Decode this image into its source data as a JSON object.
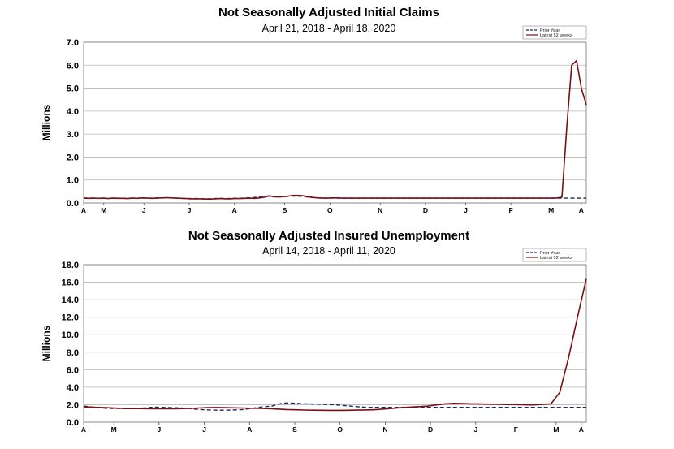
{
  "chart_data": [
    {
      "type": "line",
      "title": "Not Seasonally Adjusted Initial Claims",
      "subtitle": "April 21, 2018  -  April 18, 2020",
      "ylabel": "Millions",
      "ylim": [
        0,
        7
      ],
      "yticks": [
        "0.0",
        "1.0",
        "2.0",
        "3.0",
        "4.0",
        "5.0",
        "6.0",
        "7.0"
      ],
      "xticks": [
        "A",
        "M",
        "J",
        "J",
        "A",
        "S",
        "O",
        "N",
        "D",
        "J",
        "F",
        "M",
        "A"
      ],
      "grid": true,
      "legend_position": "top-right",
      "series": [
        {
          "name": "Prior Year",
          "style": "dashed",
          "color": "#1a2a5a",
          "values": [
            0.22,
            0.21,
            0.21,
            0.2,
            0.21,
            0.2,
            0.21,
            0.21,
            0.2,
            0.2,
            0.21,
            0.2,
            0.22,
            0.21,
            0.21,
            0.22,
            0.22,
            0.23,
            0.22,
            0.21,
            0.2,
            0.19,
            0.19,
            0.19,
            0.19,
            0.18,
            0.18,
            0.19,
            0.2,
            0.19,
            0.19,
            0.2,
            0.2,
            0.21,
            0.22,
            0.23,
            0.25,
            0.27,
            0.3,
            0.28,
            0.27,
            0.27,
            0.28,
            0.3,
            0.3,
            0.29,
            0.27,
            0.24,
            0.23,
            0.22,
            0.21,
            0.21,
            0.22,
            0.21,
            0.21,
            0.2,
            0.21,
            0.2,
            0.21,
            0.21,
            0.21,
            0.21,
            0.21,
            0.21,
            0.21,
            0.21,
            0.21,
            0.21,
            0.21,
            0.21,
            0.21,
            0.21,
            0.21,
            0.21,
            0.21,
            0.21,
            0.21,
            0.21,
            0.21,
            0.21,
            0.21,
            0.21,
            0.21,
            0.21,
            0.21,
            0.21,
            0.21,
            0.21,
            0.21,
            0.21,
            0.21,
            0.21,
            0.21,
            0.21,
            0.21,
            0.21,
            0.21,
            0.21,
            0.21,
            0.21,
            0.21,
            0.21,
            0.21,
            0.21,
            0.21
          ]
        },
        {
          "name": "Latest 52 weeks",
          "style": "solid",
          "color": "#7a0f14",
          "values": [
            0.21,
            0.2,
            0.21,
            0.2,
            0.21,
            0.19,
            0.21,
            0.2,
            0.2,
            0.19,
            0.21,
            0.2,
            0.22,
            0.21,
            0.2,
            0.21,
            0.22,
            0.23,
            0.22,
            0.21,
            0.2,
            0.19,
            0.18,
            0.18,
            0.18,
            0.17,
            0.17,
            0.18,
            0.19,
            0.18,
            0.18,
            0.19,
            0.19,
            0.2,
            0.21,
            0.2,
            0.22,
            0.25,
            0.31,
            0.27,
            0.26,
            0.28,
            0.3,
            0.33,
            0.33,
            0.31,
            0.27,
            0.24,
            0.22,
            0.21,
            0.21,
            0.22,
            0.22,
            0.21,
            0.21,
            0.21,
            0.21,
            0.21,
            0.21,
            0.21,
            0.21,
            0.21,
            0.21,
            0.21,
            0.21,
            0.21,
            0.21,
            0.21,
            0.21,
            0.21,
            0.21,
            0.21,
            0.21,
            0.21,
            0.21,
            0.21,
            0.21,
            0.21,
            0.21,
            0.21,
            0.21,
            0.21,
            0.21,
            0.21,
            0.21,
            0.21,
            0.21,
            0.21,
            0.21,
            0.21,
            0.21,
            0.21,
            0.21,
            0.21,
            0.21,
            0.21,
            0.21,
            0.22,
            0.25,
            3.31,
            6.0,
            6.2,
            4.99,
            4.27
          ]
        }
      ]
    },
    {
      "type": "line",
      "title": "Not Seasonally Adjusted Insured Unemployment",
      "subtitle": "April 14, 2018 - April 11, 2020",
      "ylabel": "Millions",
      "ylim": [
        0,
        18
      ],
      "yticks": [
        "0.0",
        "2.0",
        "4.0",
        "6.0",
        "8.0",
        "10.0",
        "12.0",
        "14.0",
        "16.0",
        "18.0"
      ],
      "xticks": [
        "A",
        "M",
        "J",
        "J",
        "A",
        "S",
        "O",
        "N",
        "D",
        "J",
        "F",
        "M",
        "A"
      ],
      "grid": true,
      "legend_position": "top-right",
      "series": [
        {
          "name": "Prior Year",
          "style": "dashed",
          "color": "#1a2a5a",
          "values": [
            1.85,
            1.78,
            1.72,
            1.68,
            1.62,
            1.58,
            1.58,
            1.57,
            1.56,
            1.55,
            1.55,
            1.56,
            1.6,
            1.65,
            1.7,
            1.72,
            1.7,
            1.68,
            1.66,
            1.65,
            1.63,
            1.6,
            1.56,
            1.5,
            1.46,
            1.42,
            1.4,
            1.38,
            1.37,
            1.37,
            1.38,
            1.4,
            1.42,
            1.45,
            1.52,
            1.6,
            1.68,
            1.75,
            1.8,
            1.85,
            2.0,
            2.15,
            2.2,
            2.18,
            2.15,
            2.12,
            2.1,
            2.08,
            2.06,
            2.05,
            2.02,
            2.0,
            2.0,
            1.95,
            1.9,
            1.85,
            1.8,
            1.75,
            1.72,
            1.7,
            1.7,
            1.7,
            1.7,
            1.7,
            1.7,
            1.7,
            1.7,
            1.7,
            1.7,
            1.7,
            1.7,
            1.7,
            1.7,
            1.7,
            1.7,
            1.7,
            1.7,
            1.7,
            1.7,
            1.7,
            1.7,
            1.7,
            1.7,
            1.7,
            1.7,
            1.7,
            1.7,
            1.7,
            1.7,
            1.7,
            1.7,
            1.7,
            1.7,
            1.7,
            1.7,
            1.7,
            1.7,
            1.7,
            1.7,
            1.7,
            1.7,
            1.7,
            1.7,
            1.7,
            1.7
          ]
        },
        {
          "name": "Latest 52 weeks",
          "style": "solid",
          "color": "#7a0f14",
          "values": [
            1.75,
            1.72,
            1.68,
            1.64,
            1.6,
            1.56,
            1.56,
            1.55,
            1.54,
            1.53,
            1.53,
            1.55,
            1.58,
            1.62,
            1.66,
            1.68,
            1.66,
            1.64,
            1.62,
            1.6,
            1.58,
            1.55,
            1.5,
            1.45,
            1.42,
            1.39,
            1.37,
            1.36,
            1.35,
            1.35,
            1.36,
            1.38,
            1.4,
            1.43,
            1.5,
            1.58,
            1.66,
            1.73,
            1.78,
            1.84,
            1.98,
            2.1,
            2.15,
            2.13,
            2.1,
            2.08,
            2.06,
            2.04,
            2.02,
            2.01,
            1.99,
            1.98,
            2.03,
            2.1,
            3.41,
            7.41,
            11.98,
            16.38
          ]
        }
      ]
    }
  ],
  "legend_labels": {
    "prior": "Prior Year",
    "latest": "Latest 52 weeks"
  }
}
